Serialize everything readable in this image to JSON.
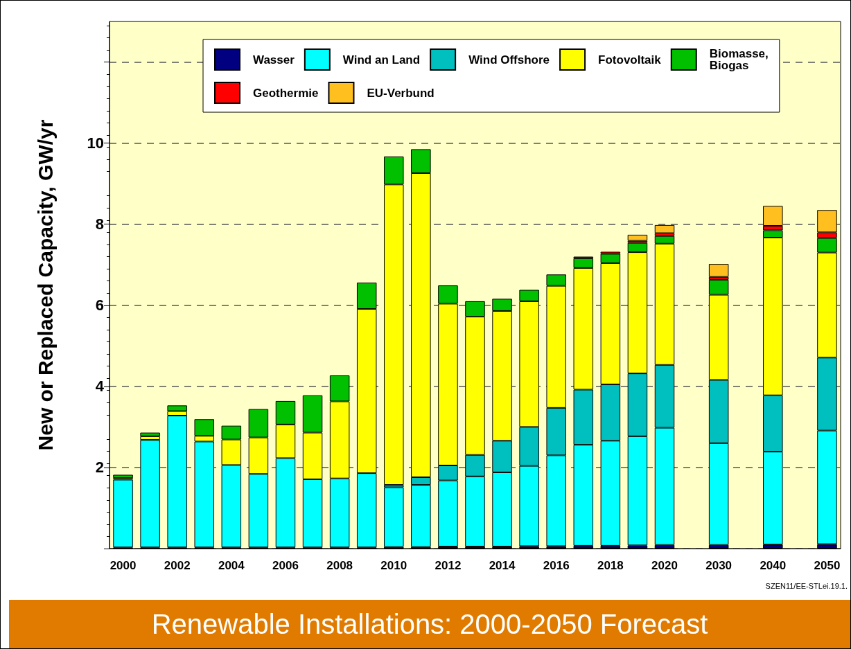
{
  "chart_data": {
    "type": "bar",
    "title": "Renewable Installations: 2000-2050 Forecast",
    "ylabel": "New or Replaced Capacity, GW/yr",
    "annotations": [
      "SZEN11/EE-STLei.19.1."
    ],
    "categories": [
      "2000",
      null,
      "2002",
      null,
      "2004",
      null,
      "2006",
      null,
      "2008",
      null,
      "2010",
      null,
      "2012",
      null,
      "2014",
      null,
      "2016",
      null,
      "2018",
      null,
      "2020",
      null,
      "2030",
      null,
      "2040",
      null,
      "2050"
    ],
    "stacked": true,
    "ylim": [
      0,
      13
    ],
    "yticks": [
      {
        "value": 0,
        "label": null
      },
      2,
      4,
      6,
      8,
      10,
      {
        "value": 12,
        "label": null
      }
    ],
    "grid": "y",
    "legend": "top",
    "series": [
      {
        "name": "Wasser",
        "color": "#000080",
        "values": [
          0.03,
          0.03,
          0.03,
          0.03,
          0.03,
          0.03,
          0.03,
          0.03,
          0.03,
          0.03,
          0.04,
          0.04,
          0.05,
          0.05,
          0.05,
          0.06,
          0.06,
          0.07,
          0.07,
          0.08,
          0.09,
          null,
          0.09,
          null,
          0.1,
          null,
          0.11
        ]
      },
      {
        "name": "Wind an Land",
        "color": "#00ffff",
        "values": [
          1.67,
          2.65,
          3.25,
          2.61,
          2.03,
          1.81,
          2.2,
          1.68,
          1.7,
          1.83,
          1.47,
          1.53,
          1.63,
          1.73,
          1.83,
          1.98,
          2.24,
          2.49,
          2.59,
          2.69,
          2.89,
          null,
          2.51,
          null,
          2.29,
          null,
          2.8
        ]
      },
      {
        "name": "Wind Offshore",
        "color": "#00bfbf",
        "values": [
          null,
          null,
          null,
          null,
          null,
          null,
          null,
          null,
          null,
          null,
          0.06,
          0.19,
          0.37,
          0.53,
          0.78,
          0.96,
          1.17,
          1.36,
          1.39,
          1.55,
          1.55,
          null,
          1.56,
          null,
          1.39,
          null,
          1.8
        ]
      },
      {
        "name": "Fotovoltaik",
        "color": "#ffff00",
        "values": [
          0.04,
          0.09,
          0.11,
          0.14,
          0.63,
          0.9,
          0.83,
          1.15,
          1.9,
          4.05,
          7.41,
          7.5,
          3.99,
          3.41,
          3.2,
          3.1,
          3.01,
          3,
          2.99,
          2.99,
          2.99,
          null,
          2.1,
          null,
          3.89,
          null,
          2.59
        ]
      },
      {
        "name": "Biomasse,\nBiogas",
        "color": "#00c000",
        "values": [
          0.08,
          0.09,
          0.14,
          0.41,
          0.34,
          0.7,
          0.58,
          0.92,
          0.64,
          0.65,
          0.69,
          0.59,
          0.45,
          0.38,
          0.3,
          0.28,
          0.28,
          0.24,
          0.23,
          0.23,
          0.19,
          null,
          0.37,
          null,
          0.18,
          null,
          0.36
        ]
      },
      {
        "name": "Geothermie",
        "color": "#ff0000",
        "values": [
          null,
          null,
          null,
          null,
          null,
          null,
          null,
          null,
          null,
          null,
          null,
          null,
          null,
          null,
          null,
          null,
          null,
          0.04,
          0.05,
          0.05,
          0.07,
          null,
          0.07,
          null,
          0.11,
          null,
          0.14
        ]
      },
      {
        "name": "EU-Verbund",
        "color": "#ffbf1f",
        "values": [
          null,
          null,
          null,
          null,
          null,
          null,
          null,
          null,
          null,
          null,
          null,
          null,
          null,
          null,
          null,
          null,
          null,
          null,
          null,
          0.15,
          0.2,
          null,
          0.32,
          null,
          0.49,
          null,
          0.55
        ]
      }
    ]
  }
}
